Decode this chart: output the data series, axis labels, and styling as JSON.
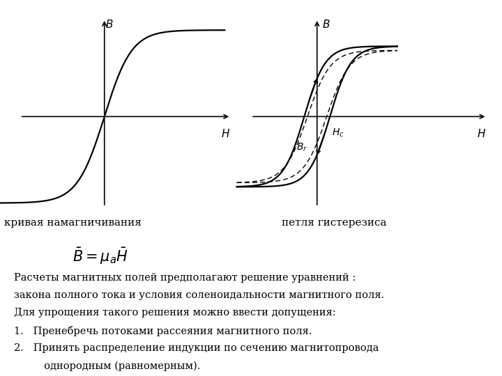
{
  "bg_color": "#ffffff",
  "fig_width": 7.2,
  "fig_height": 5.4,
  "label_left": "кривая намагничивания",
  "label_right": "петля гистерезиса",
  "formula": "$\\bar{B} = \\mu_a \\bar{H}$",
  "text_line1": "Расчеты магнитных полей предполагают решение уравнений :",
  "text_line2": "закона полного тока и условия соленоидальности магнитного поля.",
  "text_line3": "Для упрощения такого решения можно ввести допущения:",
  "text_item1": "1.   Пренебречь потоками рассеяния магнитного поля.",
  "text_item2": "2.   Принять распределение индукции по сечению магнитопровода",
  "text_item2b": "     однородным (равномерным).",
  "axis_label_B": "$B$",
  "axis_label_H": "$H$",
  "axis_label_Br": "$B_r$",
  "axis_label_Hc": "$H_c$"
}
